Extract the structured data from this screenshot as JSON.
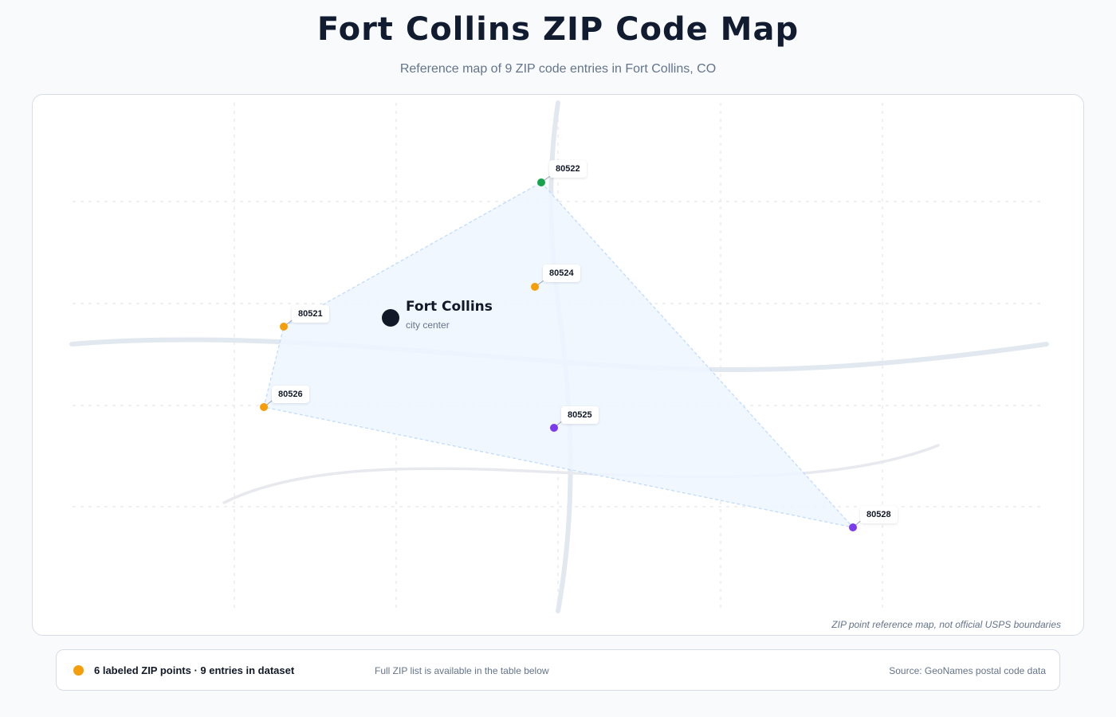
{
  "header": {
    "title": "Fort Collins ZIP Code Map",
    "subtitle": "Reference map of 9 ZIP code entries in Fort Collins, CO"
  },
  "map": {
    "city": {
      "name": "Fort Collins",
      "sublabel": "city center"
    },
    "zip_points": [
      {
        "zip": "80522",
        "color": "#16a34a"
      },
      {
        "zip": "80524",
        "color": "#f59e0b"
      },
      {
        "zip": "80521",
        "color": "#f59e0b"
      },
      {
        "zip": "80526",
        "color": "#f59e0b"
      },
      {
        "zip": "80525",
        "color": "#7c3aed"
      },
      {
        "zip": "80528",
        "color": "#7c3aed"
      }
    ],
    "disclaimer": "ZIP point reference map, not official USPS boundaries"
  },
  "footer": {
    "legend_dot_color": "#f59e0b",
    "count_text": "6 labeled ZIP points · 9 entries in dataset",
    "note": "Full ZIP list is available in the table below",
    "source": "Source: GeoNames postal code data"
  }
}
